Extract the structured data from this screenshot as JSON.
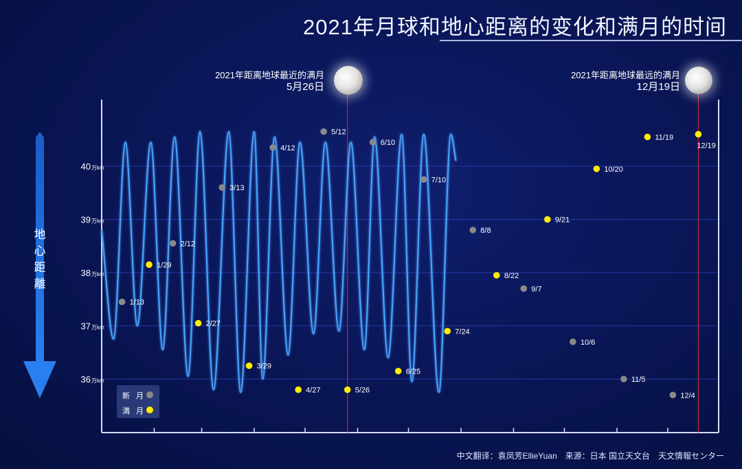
{
  "title": "2021年月球和地心距离的变化和满月的时间",
  "y_axis_label": "地心距離",
  "annotations": {
    "nearest": {
      "label": "2021年距离地球最近的满月",
      "date_label": "5月26日",
      "date": "5/26"
    },
    "farthest": {
      "label": "2021年距离地球最远的满月",
      "date_label": "12月19日",
      "date": "12/19"
    }
  },
  "legend": {
    "new_moon": "新 月",
    "full_moon": "満 月"
  },
  "credit": "中文翻译：袁凤芳EllieYuan　来源：日本 国立天文台　天文情報センター",
  "colors": {
    "curve": "#4aa4ff",
    "new_moon": "#8a8a8a",
    "full_moon": "#ffee00",
    "marker_line": "#c2213a",
    "grid": "#2b43b8"
  },
  "chart_data": {
    "type": "line",
    "y_unit": "万km",
    "yticks": [
      36,
      37,
      38,
      39,
      40
    ],
    "ylim": [
      35.0,
      41.2
    ],
    "xlim": [
      1,
      365
    ],
    "grid": true,
    "curve": [
      [
        1,
        38.8
      ],
      [
        8,
        36.75
      ],
      [
        15,
        40.45
      ],
      [
        22,
        37.0
      ],
      [
        30,
        40.45
      ],
      [
        37,
        36.55
      ],
      [
        44,
        40.55
      ],
      [
        52,
        36.05
      ],
      [
        59,
        40.65
      ],
      [
        67,
        35.8
      ],
      [
        76,
        40.65
      ],
      [
        83,
        35.75
      ],
      [
        91,
        40.65
      ],
      [
        96,
        36.0
      ],
      [
        103,
        40.55
      ],
      [
        111,
        36.45
      ],
      [
        118,
        40.45
      ],
      [
        126,
        36.85
      ],
      [
        133,
        40.45
      ],
      [
        141,
        36.9
      ],
      [
        148,
        40.45
      ],
      [
        156,
        36.55
      ],
      [
        162,
        40.55
      ],
      [
        170,
        36.4
      ],
      [
        178,
        40.6
      ],
      [
        184,
        35.95
      ],
      [
        191,
        40.6
      ],
      [
        200,
        35.75
      ],
      [
        207,
        40.6
      ],
      [
        210,
        40.1
      ]
    ],
    "series": [
      {
        "name": "新 月",
        "points": [
          {
            "label": "1/13",
            "x": 13,
            "y": 37.45
          },
          {
            "label": "2/12",
            "x": 43,
            "y": 38.55
          },
          {
            "label": "3/13",
            "x": 72,
            "y": 39.6
          },
          {
            "label": "4/12",
            "x": 102,
            "y": 40.35
          },
          {
            "label": "5/12",
            "x": 132,
            "y": 40.65
          },
          {
            "label": "6/10",
            "x": 161,
            "y": 40.45
          },
          {
            "label": "7/10",
            "x": 191,
            "y": 39.75
          },
          {
            "label": "8/8",
            "x": 220,
            "y": 38.8
          },
          {
            "label": "9/7",
            "x": 250,
            "y": 37.7
          },
          {
            "label": "10/6",
            "x": 279,
            "y": 36.7
          },
          {
            "label": "11/5",
            "x": 309,
            "y": 36.0
          },
          {
            "label": "12/4",
            "x": 338,
            "y": 35.7
          }
        ]
      },
      {
        "name": "満 月",
        "points": [
          {
            "label": "1/29",
            "x": 29,
            "y": 38.15
          },
          {
            "label": "2/27",
            "x": 58,
            "y": 37.05
          },
          {
            "label": "3/29",
            "x": 88,
            "y": 36.25
          },
          {
            "label": "4/27",
            "x": 117,
            "y": 35.8
          },
          {
            "label": "5/26",
            "x": 146,
            "y": 35.8
          },
          {
            "label": "6/25",
            "x": 176,
            "y": 36.15
          },
          {
            "label": "7/24",
            "x": 205,
            "y": 36.9
          },
          {
            "label": "8/22",
            "x": 234,
            "y": 37.95
          },
          {
            "label": "9/21",
            "x": 264,
            "y": 39.0
          },
          {
            "label": "10/20",
            "x": 293,
            "y": 39.95
          },
          {
            "label": "11/19",
            "x": 323,
            "y": 40.55
          },
          {
            "label": "12/19",
            "x": 353,
            "y": 40.6
          }
        ]
      }
    ],
    "vertical_markers": [
      "5/26",
      "12/19"
    ]
  }
}
